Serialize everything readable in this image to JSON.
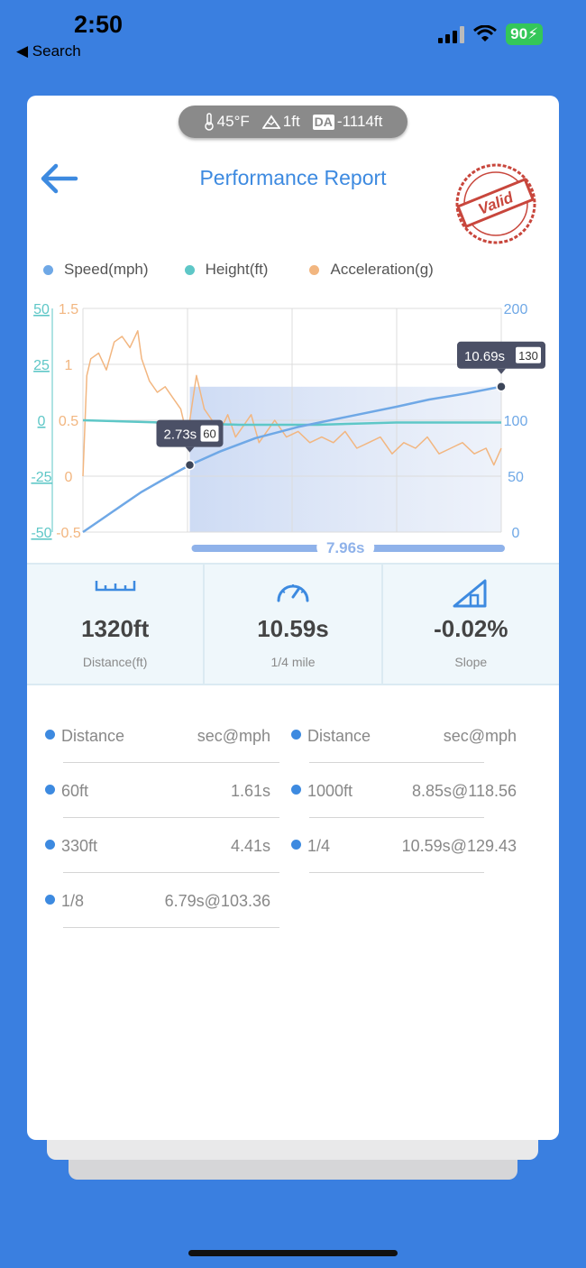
{
  "status": {
    "time": "2:50",
    "back_label": "◀ Search",
    "battery": "90"
  },
  "weather": {
    "temp": "45°F",
    "altitude": "1ft",
    "da_label": "DA",
    "da_value": "-1114ft"
  },
  "header": {
    "title": "Performance Report",
    "stamp_text": "Valid"
  },
  "legend": [
    {
      "label": "Speed(mph)",
      "color": "#6fa8e6"
    },
    {
      "label": "Height(ft)",
      "color": "#5ec7c7"
    },
    {
      "label": "Acceleration(g)",
      "color": "#f2b680"
    }
  ],
  "chart_data": {
    "type": "line",
    "axes": {
      "height_ticks": [
        "50",
        "25",
        "0",
        "-25",
        "-50"
      ],
      "accel_ticks": [
        "1.5",
        "1",
        "0.5",
        "0",
        "-0.5"
      ],
      "speed_ticks": [
        "200",
        "100",
        "50",
        "0"
      ],
      "speed_range": [
        0,
        200
      ],
      "accel_range": [
        -0.5,
        1.5
      ],
      "height_range": [
        -50,
        50
      ],
      "time_range": [
        0,
        10.69
      ]
    },
    "series": [
      {
        "name": "Speed(mph)",
        "x": [
          0,
          0.5,
          1,
          1.5,
          2,
          2.73,
          3.5,
          4.41,
          5.5,
          6.79,
          8,
          8.85,
          9.8,
          10.59,
          10.69
        ],
        "values": [
          0,
          12,
          24,
          36,
          46,
          60,
          72,
          84,
          94,
          103.36,
          112,
          118.56,
          124,
          129.43,
          130
        ]
      },
      {
        "name": "Height(ft)",
        "x": [
          0,
          2,
          4,
          6,
          8,
          10.69
        ],
        "values": [
          0,
          -1,
          -2,
          -2,
          -1,
          -1
        ]
      },
      {
        "name": "Acceleration(g)",
        "x": [
          0,
          0.1,
          0.2,
          0.4,
          0.6,
          0.8,
          1.0,
          1.2,
          1.4,
          1.5,
          1.7,
          1.9,
          2.1,
          2.3,
          2.5,
          2.6,
          2.73,
          2.9,
          3.1,
          3.3,
          3.5,
          3.7,
          3.9,
          4.1,
          4.3,
          4.5,
          4.7,
          4.9,
          5.2,
          5.5,
          5.8,
          6.1,
          6.4,
          6.7,
          7.0,
          7.3,
          7.6,
          7.9,
          8.2,
          8.5,
          8.8,
          9.1,
          9.4,
          9.7,
          10.0,
          10.3,
          10.5,
          10.69
        ],
        "values": [
          0.0,
          0.9,
          1.05,
          1.1,
          0.95,
          1.2,
          1.25,
          1.15,
          1.3,
          1.05,
          0.85,
          0.75,
          0.8,
          0.7,
          0.6,
          0.45,
          0.5,
          0.9,
          0.6,
          0.5,
          0.4,
          0.55,
          0.35,
          0.45,
          0.55,
          0.3,
          0.4,
          0.5,
          0.35,
          0.4,
          0.3,
          0.35,
          0.3,
          0.4,
          0.25,
          0.3,
          0.35,
          0.2,
          0.3,
          0.25,
          0.35,
          0.2,
          0.25,
          0.3,
          0.2,
          0.25,
          0.1,
          0.25
        ]
      }
    ],
    "markers": [
      {
        "time_label": "2.73s",
        "speed_label": "60",
        "x": 2.73,
        "y": 60
      },
      {
        "time_label": "10.69s",
        "speed_label": "130",
        "x": 10.69,
        "y": 130
      }
    ],
    "range_label": "7.96s",
    "range": [
      2.73,
      10.69
    ]
  },
  "stats": [
    {
      "value": "1320ft",
      "label": "Distance(ft)",
      "icon": "ruler-icon"
    },
    {
      "value": "10.59s",
      "label": "1/4 mile",
      "icon": "speedometer-icon"
    },
    {
      "value": "-0.02%",
      "label": "Slope",
      "icon": "slope-icon"
    }
  ],
  "splits": {
    "header_left": {
      "label": "Distance",
      "value": "sec@mph"
    },
    "header_right": {
      "label": "Distance",
      "value": "sec@mph"
    },
    "left": [
      {
        "label": "60ft",
        "value": "1.61s"
      },
      {
        "label": "330ft",
        "value": "4.41s"
      },
      {
        "label": "1/8",
        "value": "6.79s@103.36"
      }
    ],
    "right": [
      {
        "label": "1000ft",
        "value": "8.85s@118.56"
      },
      {
        "label": "1/4",
        "value": "10.59s@129.43"
      }
    ]
  }
}
